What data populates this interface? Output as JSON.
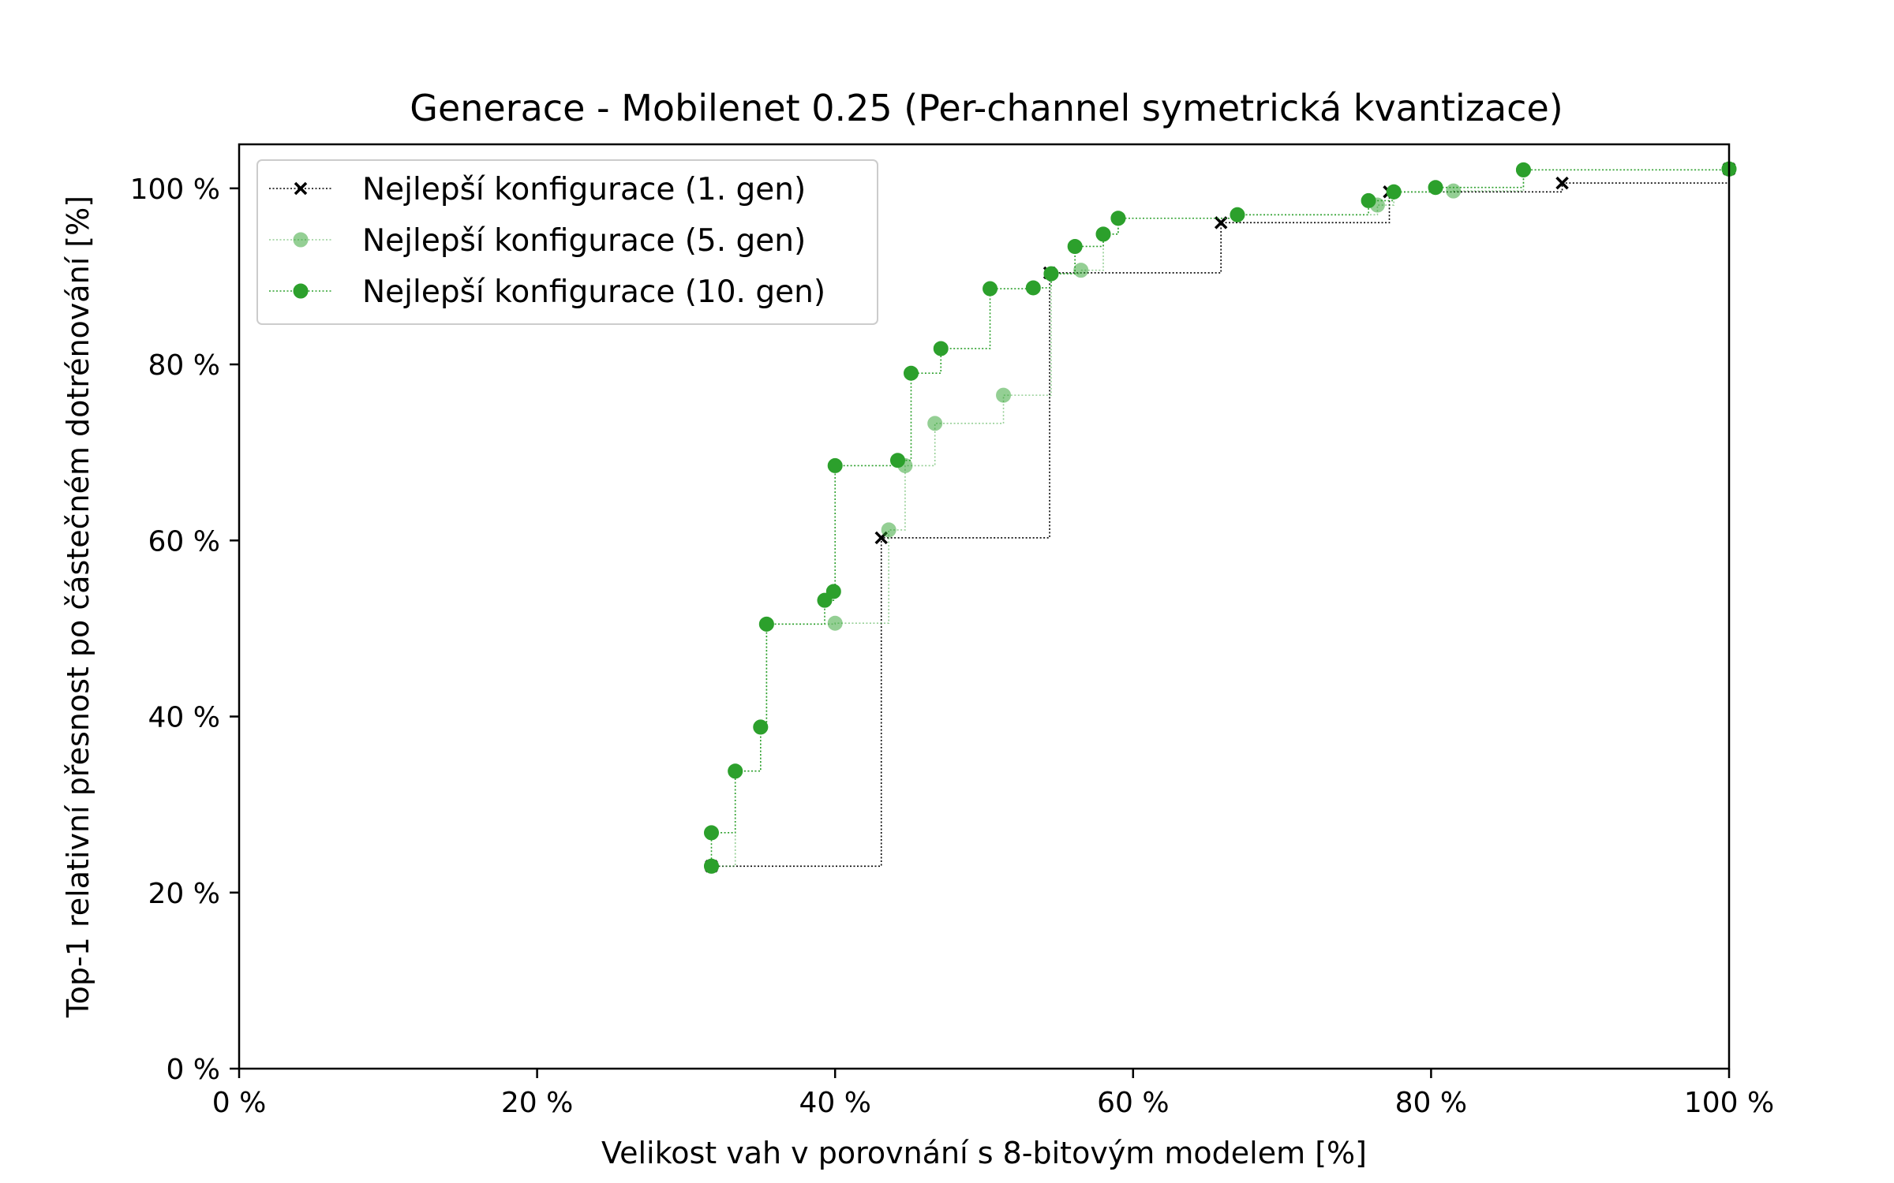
{
  "chart_data": {
    "type": "line",
    "drawstyle": "steps-post",
    "title": "Generace - Mobilenet 0.25 (Per-channel symetrická kvantizace)",
    "xlabel": "Velikost vah v porovnání s 8-bitovým modelem [%]",
    "ylabel": "Top-1 relativní přesnost po částečném dotrénování [%]",
    "xlim": [
      0,
      100
    ],
    "ylim": [
      0,
      105
    ],
    "xticks": [
      0,
      20,
      40,
      60,
      80,
      100
    ],
    "yticks": [
      0,
      20,
      40,
      60,
      80,
      100
    ],
    "xtick_labels": [
      "0 %",
      "20 %",
      "40 %",
      "60 %",
      "80 %",
      "100 %"
    ],
    "ytick_labels": [
      "0 %",
      "20 %",
      "40 %",
      "60 %",
      "80 %",
      "100 %"
    ],
    "grid": false,
    "legend_position": "top-left",
    "series": [
      {
        "name": "Nejlepší konfigurace (1. gen)",
        "color": "#000000",
        "marker": "x",
        "alpha": 1.0,
        "x": [
          31.7,
          43.1,
          54.4,
          65.9,
          77.2,
          88.8,
          100
        ],
        "y": [
          23.0,
          60.3,
          90.4,
          96.1,
          99.6,
          100.6,
          102.2
        ]
      },
      {
        "name": "Nejlepší konfigurace (5. gen)",
        "color": "#2ca02c",
        "marker": "o",
        "alpha": 0.5,
        "x": [
          31.7,
          33.3,
          35.0,
          35.4,
          40.0,
          43.6,
          44.7,
          46.7,
          51.3,
          54.5,
          56.5,
          58.0,
          59.0,
          67.0,
          76.4,
          77.5,
          81.5,
          86.2,
          100
        ],
        "y": [
          23.0,
          33.8,
          38.8,
          50.5,
          50.6,
          61.2,
          68.5,
          73.3,
          76.5,
          90.3,
          90.7,
          94.8,
          96.6,
          97.0,
          98.1,
          99.6,
          99.7,
          102.1,
          102.2
        ]
      },
      {
        "name": "Nejlepší konfigurace (10. gen)",
        "color": "#2ca02c",
        "marker": "o",
        "alpha": 1.0,
        "x": [
          31.7,
          31.7,
          33.3,
          35.0,
          35.4,
          39.3,
          39.9,
          40.0,
          44.2,
          45.1,
          47.1,
          50.4,
          53.3,
          54.5,
          56.1,
          58.0,
          59.0,
          67.0,
          75.8,
          77.5,
          80.3,
          86.2,
          100
        ],
        "y": [
          23.0,
          26.8,
          33.8,
          38.8,
          50.5,
          53.2,
          54.2,
          68.5,
          69.1,
          79.0,
          81.8,
          88.6,
          88.7,
          90.3,
          93.4,
          94.8,
          96.6,
          97.0,
          98.6,
          99.6,
          100.1,
          102.1,
          102.2
        ]
      }
    ]
  }
}
